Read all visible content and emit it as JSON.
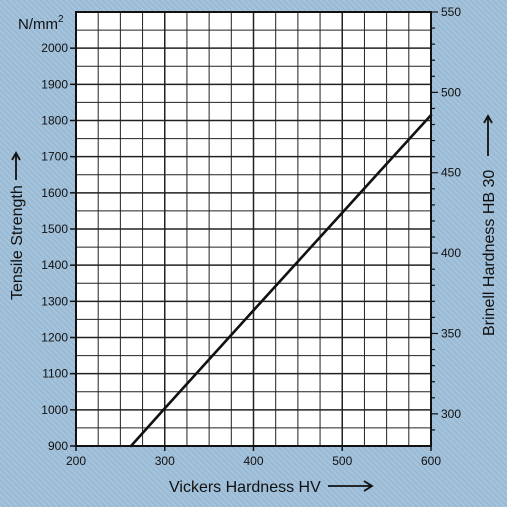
{
  "chart_data": {
    "type": "line",
    "unit_label": "N/mm",
    "unit_superscript": "2",
    "xlabel": "Vickers Hardness HV",
    "ylabel": "Tensile Strength",
    "y2label": "Brinell Hardness HB 30",
    "xlim": [
      200,
      600
    ],
    "ylim": [
      900,
      2100
    ],
    "y2lim": [
      280,
      550
    ],
    "xticks": [
      "200",
      "300",
      "400",
      "500",
      "600"
    ],
    "yticks": [
      "900",
      "1000",
      "1100",
      "1200",
      "1300",
      "1400",
      "1500",
      "1600",
      "1700",
      "1800",
      "1900",
      "2000"
    ],
    "y2ticks": [
      "300",
      "350",
      "400",
      "450",
      "500",
      "550"
    ],
    "grid": true,
    "series": [
      {
        "x": [
          262,
          300,
          400,
          500,
          600
        ],
        "y": [
          900,
          1004,
          1275,
          1545,
          1815
        ]
      }
    ],
    "colors": {
      "background": "#9fbfda",
      "plot": "#ffffff",
      "line": "#111111"
    }
  }
}
